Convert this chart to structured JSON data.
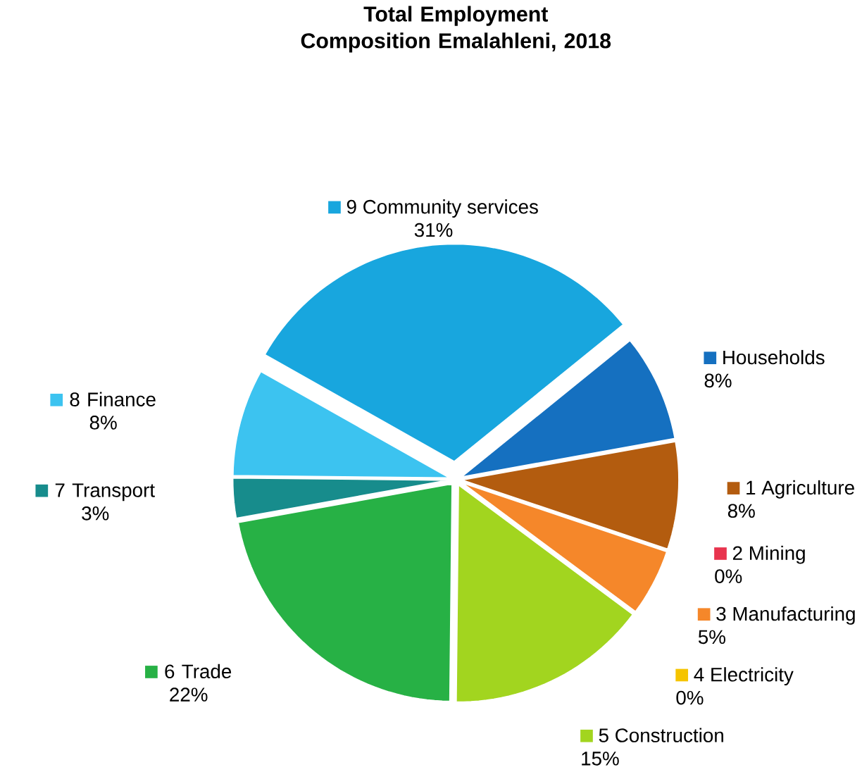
{
  "chart_data": {
    "type": "pie",
    "title": "Total Employment Composition Emalahleni, 2018",
    "categories": [
      "Households",
      "1 Agriculture",
      "2 Mining",
      "3 Manufacturing",
      "4 Electricity",
      "5 Construction",
      "6 Trade",
      "7 Transport",
      "8 Finance",
      "9 Community services"
    ],
    "values": [
      8,
      8,
      0,
      5,
      0,
      15,
      22,
      3,
      8,
      31
    ],
    "value_labels": [
      "8%",
      "8%",
      "0%",
      "5%",
      "0%",
      "15%",
      "22%",
      "3%",
      "8%",
      "31%"
    ],
    "colors": [
      "#1570c0",
      "#b35c0f",
      "#e8344e",
      "#f5872a",
      "#f5c400",
      "#a2d51f",
      "#27b145",
      "#178c8c",
      "#3cc3f0",
      "#18a6de"
    ],
    "legend": "right"
  }
}
